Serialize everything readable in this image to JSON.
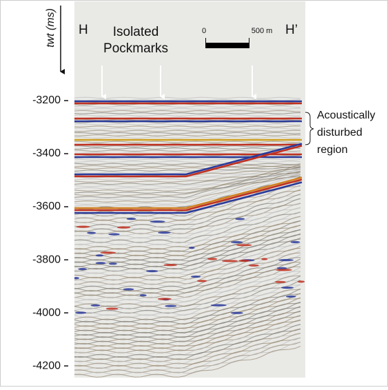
{
  "figure": {
    "left_label": "H",
    "right_label": "H’",
    "y_axis_label": "twt (ms)",
    "ylim": [
      -2826,
      -4244
    ],
    "yticks": [
      -3200,
      -3400,
      -3600,
      -3800,
      -4000,
      -4200
    ],
    "pockmark_label": [
      "Isolated",
      "Pockmarks"
    ],
    "scale_bar": {
      "start_label": "0",
      "end_label": "500 m"
    },
    "region_label": [
      "Acoustically",
      "disturbed",
      "region"
    ]
  }
}
